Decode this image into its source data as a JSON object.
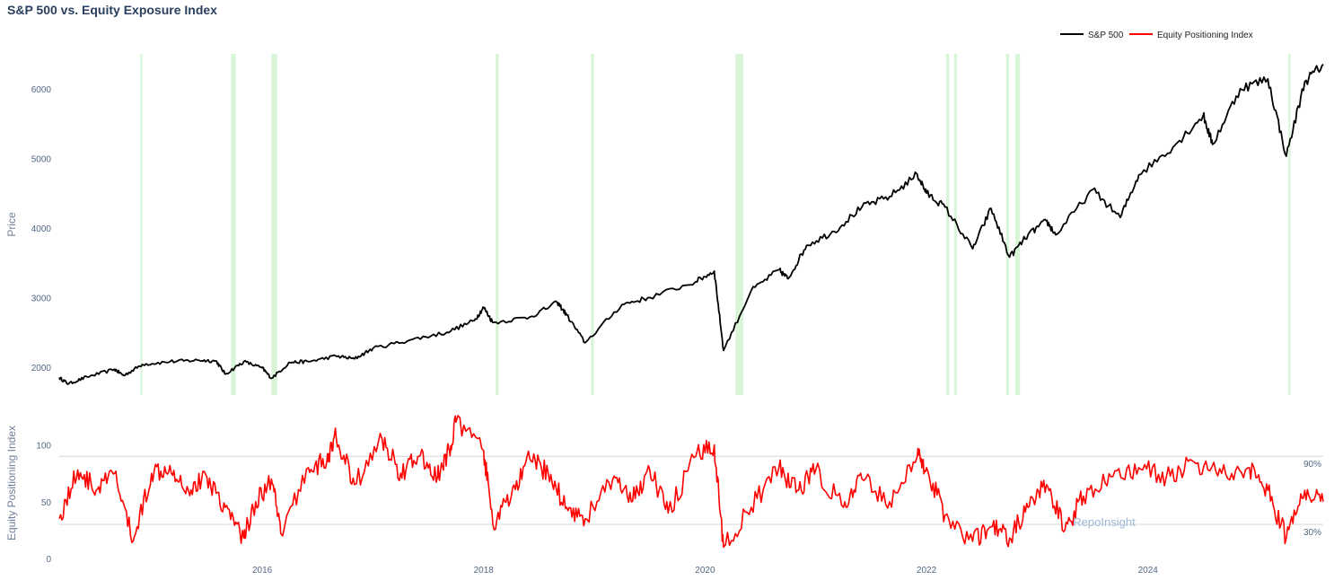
{
  "chart_data": {
    "type": "line",
    "title": "S&P 500 vs. Equity Exposure Index",
    "legend": {
      "placement": "top-right",
      "entries": [
        "S&P 500",
        "Equity Positioning Index"
      ]
    },
    "watermark": "RepoInsight",
    "colors": {
      "sp500": "#000000",
      "epi": "#ff0000",
      "highlight": "#d8f5d8",
      "grid": "#e4e4e4"
    },
    "x_ticks": [
      "2016",
      "2018",
      "2020",
      "2022",
      "2024"
    ],
    "x_range": [
      "2014-03",
      "2025-08"
    ],
    "highlight_periods": [
      [
        "2014-11-25",
        "2014-12-01"
      ],
      [
        "2015-09-20",
        "2015-10-05"
      ],
      [
        "2016-02-01",
        "2016-02-20"
      ],
      [
        "2018-02-10",
        "2018-02-20"
      ],
      [
        "2018-12-20",
        "2018-12-30"
      ],
      [
        "2020-04-10",
        "2020-05-05"
      ],
      [
        "2022-03-05",
        "2022-03-15"
      ],
      [
        "2022-04-01",
        "2022-04-10"
      ],
      [
        "2022-09-20",
        "2022-09-30"
      ],
      [
        "2022-10-20",
        "2022-11-05"
      ],
      [
        "2025-04-08",
        "2025-04-15"
      ]
    ],
    "panels": [
      {
        "name": "price",
        "ylabel": "Price",
        "y_ticks": [
          2000,
          3000,
          4000,
          5000,
          6000
        ],
        "ylim": [
          1600,
          6500
        ],
        "series": [
          {
            "name": "S&P 500",
            "points": [
              [
                "2014-03",
                1850
              ],
              [
                "2014-04",
                1760
              ],
              [
                "2014-06",
                1860
              ],
              [
                "2014-09",
                1970
              ],
              [
                "2014-10",
                1880
              ],
              [
                "2014-12",
                2040
              ],
              [
                "2015-03",
                2080
              ],
              [
                "2015-06",
                2100
              ],
              [
                "2015-08",
                2090
              ],
              [
                "2015-09",
                1900
              ],
              [
                "2015-11",
                2080
              ],
              [
                "2016-01",
                1990
              ],
              [
                "2016-02",
                1840
              ],
              [
                "2016-04",
                2070
              ],
              [
                "2016-06",
                2080
              ],
              [
                "2016-09",
                2160
              ],
              [
                "2016-11",
                2120
              ],
              [
                "2017-01",
                2270
              ],
              [
                "2017-05",
                2390
              ],
              [
                "2017-09",
                2500
              ],
              [
                "2017-12",
                2670
              ],
              [
                "2018-01",
                2860
              ],
              [
                "2018-02",
                2640
              ],
              [
                "2018-06",
                2720
              ],
              [
                "2018-09",
                2930
              ],
              [
                "2018-10",
                2750
              ],
              [
                "2018-12",
                2350
              ],
              [
                "2019-04",
                2900
              ],
              [
                "2019-07",
                3000
              ],
              [
                "2019-12",
                3230
              ],
              [
                "2020-02",
                3380
              ],
              [
                "2020-03",
                2240
              ],
              [
                "2020-06",
                3100
              ],
              [
                "2020-09",
                3400
              ],
              [
                "2020-10",
                3270
              ],
              [
                "2020-12",
                3750
              ],
              [
                "2021-03",
                3950
              ],
              [
                "2021-06",
                4300
              ],
              [
                "2021-09",
                4450
              ],
              [
                "2021-12",
                4770
              ],
              [
                "2022-01",
                4500
              ],
              [
                "2022-03",
                4300
              ],
              [
                "2022-06",
                3700
              ],
              [
                "2022-08",
                4280
              ],
              [
                "2022-10",
                3580
              ],
              [
                "2022-12",
                3900
              ],
              [
                "2023-02",
                4100
              ],
              [
                "2023-03",
                3900
              ],
              [
                "2023-07",
                4550
              ],
              [
                "2023-10",
                4150
              ],
              [
                "2023-12",
                4760
              ],
              [
                "2024-04",
                5200
              ],
              [
                "2024-07",
                5620
              ],
              [
                "2024-08",
                5200
              ],
              [
                "2024-11",
                6000
              ],
              [
                "2025-02",
                6140
              ],
              [
                "2025-04",
                5030
              ],
              [
                "2025-06",
                6100
              ],
              [
                "2025-08",
                6350
              ]
            ]
          }
        ]
      },
      {
        "name": "positioning",
        "ylabel": "Equity Positioning Index",
        "y_ticks": [
          0,
          50,
          100
        ],
        "ylim": [
          0,
          125
        ],
        "levels": [
          {
            "value": 90,
            "label": "90%"
          },
          {
            "value": 30,
            "label": "30%"
          }
        ],
        "series": [
          {
            "name": "Equity Positioning Index",
            "points": [
              [
                "2014-03",
                35
              ],
              [
                "2014-05",
                78
              ],
              [
                "2014-07",
                60
              ],
              [
                "2014-09",
                75
              ],
              [
                "2014-11",
                15
              ],
              [
                "2015-01",
                75
              ],
              [
                "2015-03",
                82
              ],
              [
                "2015-05",
                60
              ],
              [
                "2015-07",
                72
              ],
              [
                "2015-09",
                45
              ],
              [
                "2015-11",
                18
              ],
              [
                "2015-12",
                45
              ],
              [
                "2016-02",
                70
              ],
              [
                "2016-03",
                22
              ],
              [
                "2016-06",
                80
              ],
              [
                "2016-08",
                85
              ],
              [
                "2016-09",
                108
              ],
              [
                "2016-11",
                65
              ],
              [
                "2017-02",
                105
              ],
              [
                "2017-04",
                75
              ],
              [
                "2017-06",
                90
              ],
              [
                "2017-08",
                72
              ],
              [
                "2017-09",
                88
              ],
              [
                "2017-10",
                120
              ],
              [
                "2018-01",
                95
              ],
              [
                "2018-02",
                30
              ],
              [
                "2018-04",
                55
              ],
              [
                "2018-06",
                88
              ],
              [
                "2018-08",
                75
              ],
              [
                "2018-10",
                45
              ],
              [
                "2018-12",
                35
              ],
              [
                "2019-03",
                70
              ],
              [
                "2019-05",
                50
              ],
              [
                "2019-07",
                78
              ],
              [
                "2019-09",
                40
              ],
              [
                "2019-12",
                90
              ],
              [
                "2020-02",
                100
              ],
              [
                "2020-03",
                10
              ],
              [
                "2020-06",
                45
              ],
              [
                "2020-09",
                80
              ],
              [
                "2020-11",
                60
              ],
              [
                "2021-01",
                78
              ],
              [
                "2021-04",
                45
              ],
              [
                "2021-06",
                70
              ],
              [
                "2021-09",
                50
              ],
              [
                "2021-12",
                90
              ],
              [
                "2022-01",
                80
              ],
              [
                "2022-03",
                38
              ],
              [
                "2022-06",
                15
              ],
              [
                "2022-08",
                28
              ],
              [
                "2022-10",
                18
              ],
              [
                "2022-12",
                45
              ],
              [
                "2023-02",
                65
              ],
              [
                "2023-04",
                25
              ],
              [
                "2023-06",
                55
              ],
              [
                "2023-09",
                72
              ],
              [
                "2023-12",
                80
              ],
              [
                "2024-03",
                72
              ],
              [
                "2024-06",
                85
              ],
              [
                "2024-09",
                75
              ],
              [
                "2024-12",
                80
              ],
              [
                "2025-02",
                60
              ],
              [
                "2025-04",
                18
              ],
              [
                "2025-06",
                60
              ],
              [
                "2025-08",
                50
              ]
            ]
          }
        ]
      }
    ]
  }
}
